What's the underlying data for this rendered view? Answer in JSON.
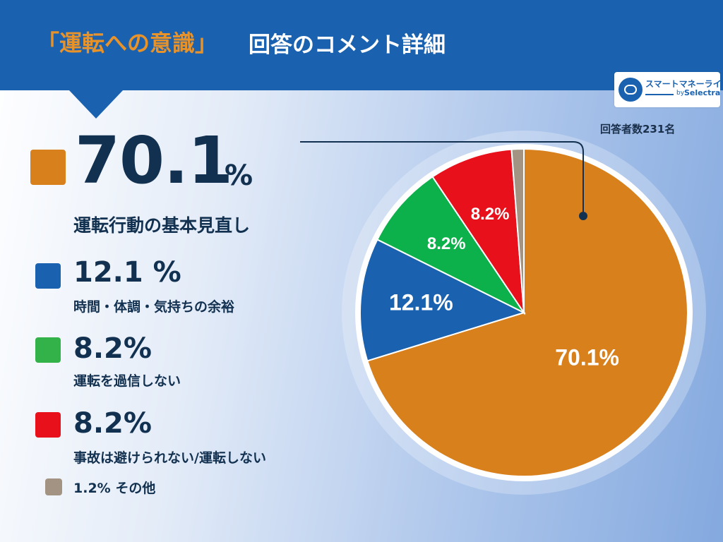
{
  "header": {
    "title_accent": "「運転への意識」",
    "title_main": "回答のコメント詳細"
  },
  "logo": {
    "name": "スマートマネーライフ",
    "by": "by",
    "brand": "Selectra"
  },
  "respondents_note": "回答者数231名",
  "legend": {
    "highlight": {
      "value": "70.1",
      "unit": "%",
      "label": "運転行動の基本見直し"
    },
    "items": [
      {
        "value": "12.1 %",
        "label": "時間・体調・気持ちの余裕"
      },
      {
        "value": "8.2%",
        "label": "運転を過信しない"
      },
      {
        "value": "8.2%",
        "label": "事故は避けられない/運転しない"
      },
      {
        "value": "1.2%",
        "label": "その他"
      }
    ]
  },
  "chart_data": {
    "type": "pie",
    "slices": [
      {
        "name": "運転行動の基本見直し",
        "value": 70.1,
        "label": "70.1%",
        "color": "#d8801c",
        "text_color": "#ffffff"
      },
      {
        "name": "時間・体調・気持ちの余裕",
        "value": 12.1,
        "label": "12.1%",
        "color": "#1a62b0",
        "text_color": "#ffffff"
      },
      {
        "name": "運転を過信しない",
        "value": 8.2,
        "label": "8.2%",
        "color": "#0db14b",
        "text_color": "#ffffff"
      },
      {
        "name": "事故は避けられない/運転しない",
        "value": 8.2,
        "label": "8.2%",
        "color": "#e8101a",
        "text_color": "#ffffff"
      },
      {
        "name": "その他",
        "value": 1.2,
        "label": "",
        "color": "#a39382",
        "text_color": "#ffffff"
      }
    ],
    "start": "12 o'clock",
    "direction": "clockwise"
  },
  "colors": {
    "header": "#1a62b0",
    "accent": "#e8922a",
    "text": "#12304f"
  }
}
